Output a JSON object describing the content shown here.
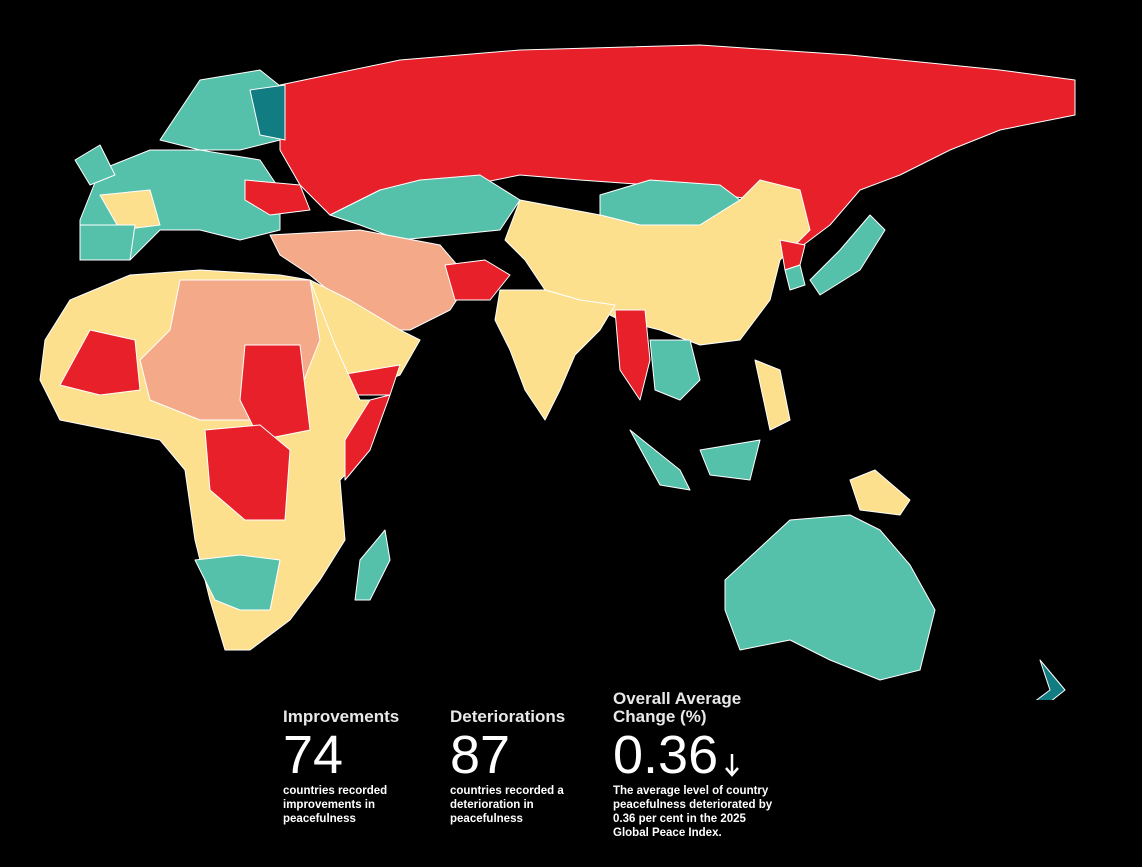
{
  "stats": [
    {
      "title": "Improvements",
      "value": "74",
      "description": "countries recorded improvements in peacefulness"
    },
    {
      "title": "Deteriorations",
      "value": "87",
      "description": "countries recorded a deterioration in peacefulness"
    },
    {
      "title": "Overall Average Change (%)",
      "value": "0.36",
      "description": "The average level of country peacefulness deteriorated by 0.36 per cent in the 2025 Global Peace Index."
    }
  ]
}
